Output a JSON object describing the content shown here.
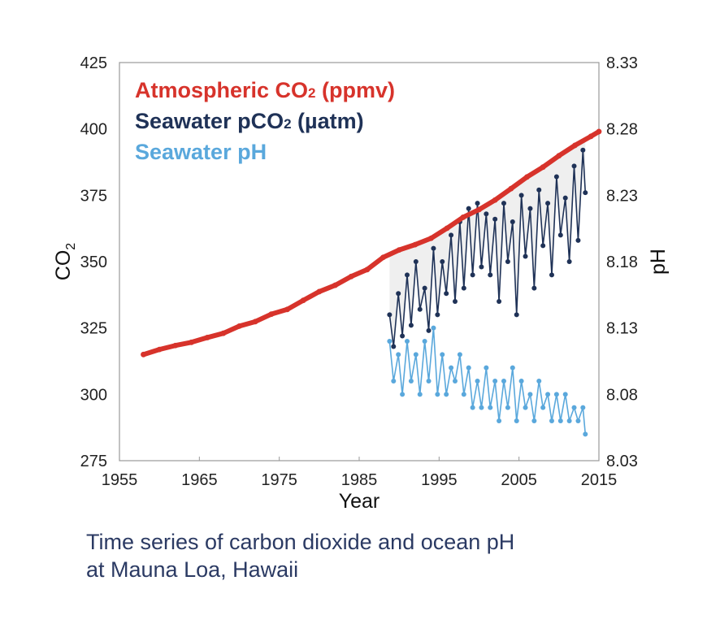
{
  "chart_data": {
    "type": "line",
    "title": "",
    "xlabel": "Year",
    "ylabel_left": "CO",
    "ylabel_left_sub": "2",
    "ylabel_right": "pH",
    "xlim": [
      1955,
      2015
    ],
    "ylim_left": [
      275,
      425
    ],
    "ylim_right": [
      8.03,
      8.33
    ],
    "x_ticks": [
      "1955",
      "1965",
      "1975",
      "1985",
      "1995",
      "2005",
      "2015"
    ],
    "y_left_ticks": [
      "425",
      "400",
      "375",
      "350",
      "325",
      "300",
      "275"
    ],
    "y_right_ticks": [
      "8.33",
      "8.28",
      "8.23",
      "8.18",
      "8.13",
      "8.08",
      "8.03"
    ],
    "grid": false,
    "legend_position": "top-left",
    "legend": [
      {
        "text": "Atmospheric CO",
        "sub": "2",
        "unit": " (ppmv)",
        "color": "#d7332b"
      },
      {
        "text": "Seawater pCO",
        "sub": "2",
        "unit": " (µatm)",
        "color": "#1f3257"
      },
      {
        "text": "Seawater pH",
        "sub": "",
        "unit": "",
        "color": "#5aa8dc"
      }
    ],
    "series": [
      {
        "name": "Atmospheric CO2 (ppmv)",
        "axis": "left",
        "color": "#d7332b",
        "x": [
          1958,
          1960,
          1962,
          1964,
          1966,
          1968,
          1970,
          1972,
          1974,
          1976,
          1978,
          1980,
          1982,
          1984,
          1986,
          1988,
          1990,
          1992,
          1994,
          1996,
          1998,
          2000,
          2002,
          2004,
          2006,
          2008,
          2010,
          2012,
          2014,
          2015
        ],
        "values": [
          315,
          316.9,
          318.4,
          319.6,
          321.4,
          323,
          325.7,
          327.4,
          330.2,
          332,
          335.4,
          338.7,
          341.1,
          344.4,
          347,
          351.6,
          354.4,
          356.4,
          358.8,
          362.6,
          366.7,
          369.6,
          373.2,
          377.5,
          381.9,
          385.6,
          389.9,
          393.8,
          397.2,
          399
        ]
      },
      {
        "name": "Seawater pCO2 (µatm)",
        "axis": "left",
        "color": "#1f3257",
        "x": [
          1988.8,
          1989.3,
          1989.9,
          1990.4,
          1991,
          1991.5,
          1992.1,
          1992.6,
          1993.2,
          1993.7,
          1994.3,
          1994.8,
          1995.4,
          1995.9,
          1996.5,
          1997,
          1997.6,
          1998.1,
          1998.7,
          1999.2,
          1999.8,
          2000.3,
          2000.9,
          2001.4,
          2002,
          2002.5,
          2003.1,
          2003.6,
          2004.2,
          2004.7,
          2005.3,
          2005.8,
          2006.4,
          2006.9,
          2007.5,
          2008,
          2008.6,
          2009.1,
          2009.7,
          2010.2,
          2010.8,
          2011.3,
          2011.9,
          2012.4,
          2013,
          2013.3
        ],
        "values": [
          330,
          318,
          338,
          322,
          345,
          326,
          350,
          332,
          340,
          324,
          355,
          330,
          350,
          338,
          360,
          335,
          365,
          340,
          370,
          345,
          372,
          348,
          368,
          345,
          366,
          335,
          372,
          350,
          365,
          330,
          375,
          352,
          370,
          340,
          377,
          356,
          372,
          345,
          382,
          360,
          374,
          350,
          386,
          358,
          392,
          376
        ]
      },
      {
        "name": "Seawater pH",
        "axis": "right",
        "color": "#5aa8dc",
        "x": [
          1988.8,
          1989.3,
          1989.9,
          1990.4,
          1991,
          1991.5,
          1992.1,
          1992.6,
          1993.2,
          1993.7,
          1994.3,
          1994.8,
          1995.4,
          1995.9,
          1996.5,
          1997,
          1997.6,
          1998.1,
          1998.7,
          1999.2,
          1999.8,
          2000.3,
          2000.9,
          2001.4,
          2002,
          2002.5,
          2003.1,
          2003.6,
          2004.2,
          2004.7,
          2005.3,
          2005.8,
          2006.4,
          2006.9,
          2007.5,
          2008,
          2008.6,
          2009.1,
          2009.7,
          2010.2,
          2010.8,
          2011.3,
          2011.9,
          2012.4,
          2013,
          2013.3
        ],
        "values": [
          8.12,
          8.09,
          8.11,
          8.08,
          8.12,
          8.09,
          8.11,
          8.08,
          8.12,
          8.09,
          8.13,
          8.08,
          8.11,
          8.08,
          8.1,
          8.09,
          8.11,
          8.08,
          8.1,
          8.07,
          8.09,
          8.07,
          8.1,
          8.07,
          8.09,
          8.06,
          8.09,
          8.07,
          8.1,
          8.06,
          8.09,
          8.07,
          8.08,
          8.06,
          8.09,
          8.07,
          8.08,
          8.06,
          8.08,
          8.06,
          8.08,
          8.06,
          8.07,
          8.06,
          8.07,
          8.05
        ]
      }
    ]
  },
  "caption": {
    "line1": "Time series of carbon dioxide and ocean pH",
    "line2": "at Mauna Loa, Hawaii"
  },
  "colors": {
    "fill_between": "#efefef",
    "axis": "#999999"
  }
}
